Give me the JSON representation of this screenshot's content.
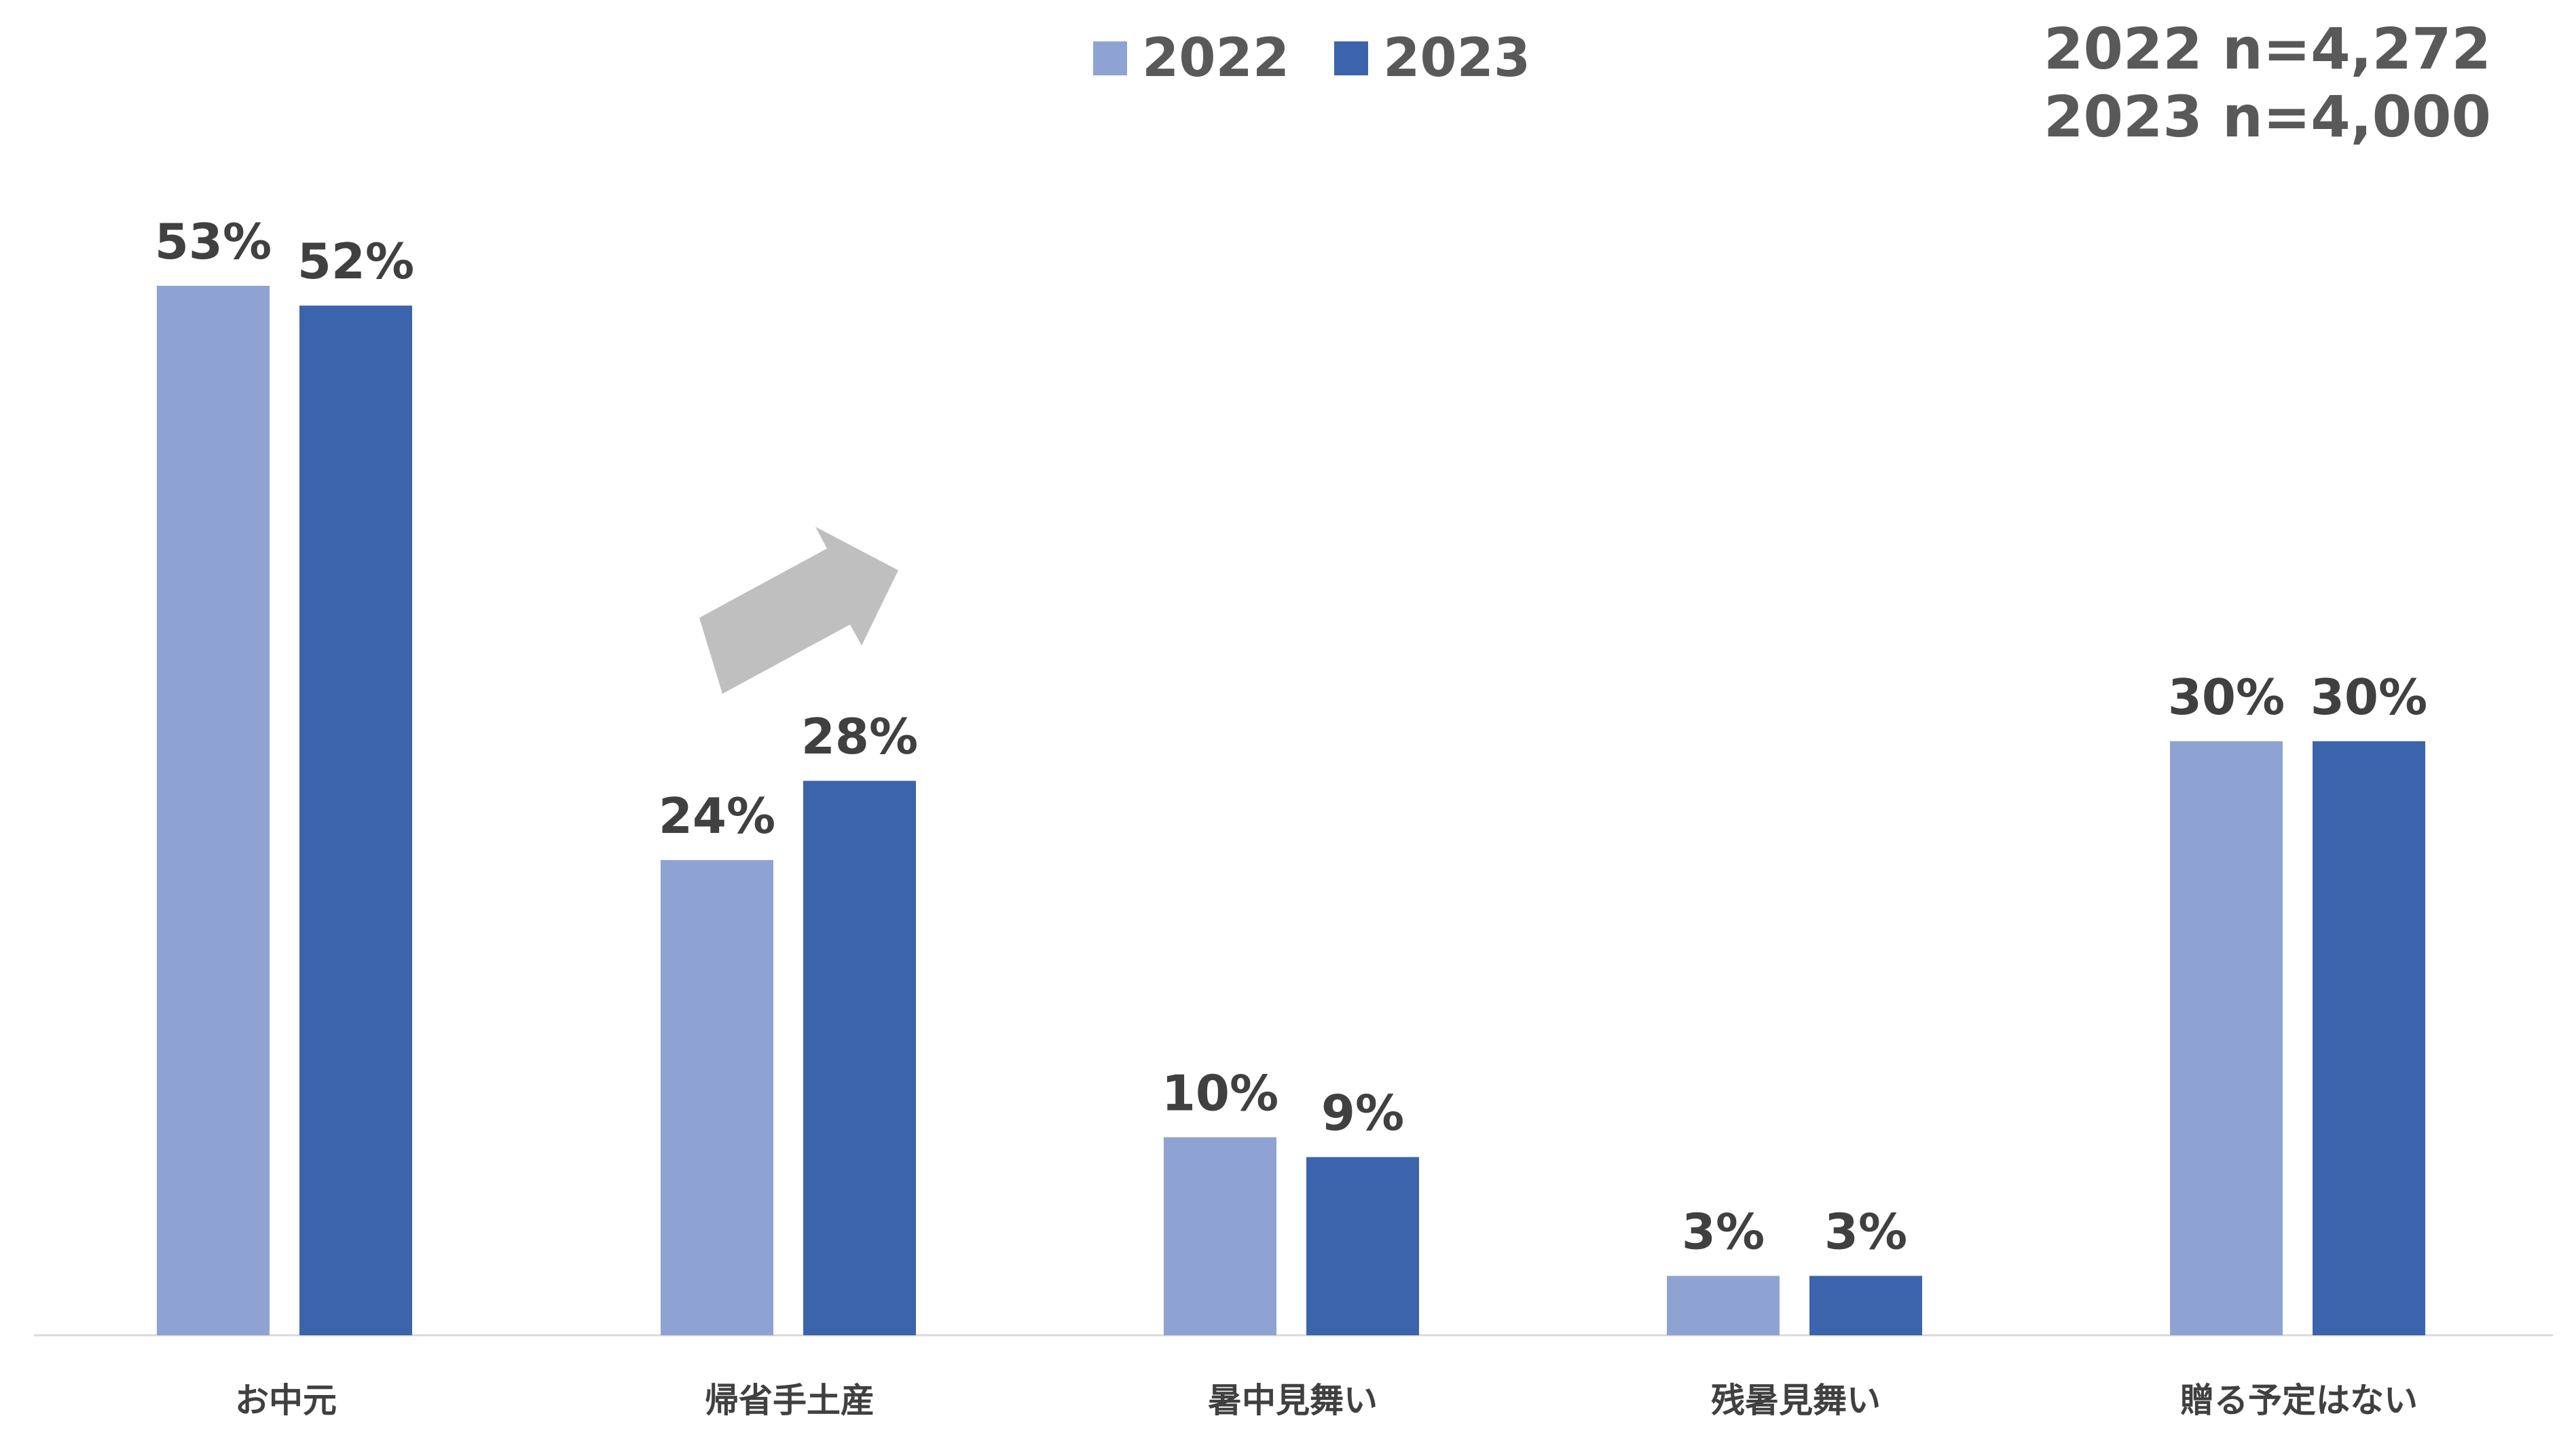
{
  "chart_data": {
    "type": "bar",
    "title": "",
    "xlabel": "",
    "ylabel": "",
    "ylim": [
      0,
      60
    ],
    "grid": false,
    "legend_position": "top",
    "categories": [
      "お中元",
      "帰省手土産",
      "暑中見舞い",
      "残暑見舞い",
      "贈る予定はない"
    ],
    "series": [
      {
        "name": "2022",
        "color": "#8FA3D3",
        "values": [
          53,
          24,
          10,
          3,
          30
        ],
        "labels": [
          "53%",
          "24%",
          "10%",
          "3%",
          "30%"
        ]
      },
      {
        "name": "2023",
        "color": "#3C64AC",
        "values": [
          52,
          28,
          9,
          3,
          30
        ],
        "labels": [
          "52%",
          "28%",
          "9%",
          "3%",
          "30%"
        ]
      }
    ],
    "annotations": [
      {
        "type": "arrow",
        "category": "帰省手土産",
        "direction": "up-right",
        "color": "#BFBFBF"
      }
    ]
  },
  "sample_sizes": [
    "2022 n=4,272",
    "2023 n=4,000"
  ],
  "colors": {
    "label_text": "#404040",
    "axis_text": "#404040",
    "legend_text": "#595959",
    "axis_line": "#D9D9D9"
  }
}
